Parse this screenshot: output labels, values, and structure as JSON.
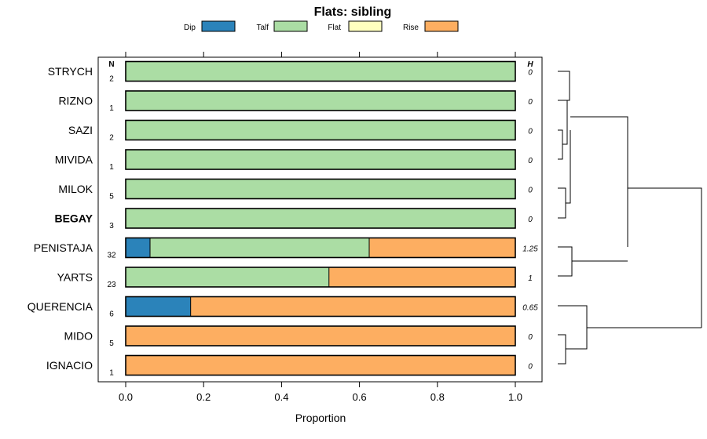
{
  "chart_data": {
    "type": "bar",
    "orientation": "horizontal",
    "stacked": true,
    "title": "Flats: sibling",
    "xlabel": "Proportion",
    "ylabel": "",
    "xlim": [
      0,
      1
    ],
    "xticks": [
      "0.0",
      "0.2",
      "0.4",
      "0.6",
      "0.8",
      "1.0"
    ],
    "n_header": "N",
    "h_header": "H",
    "legend": [
      {
        "name": "Dip",
        "color": "#2b83ba"
      },
      {
        "name": "Talf",
        "color": "#abdda4"
      },
      {
        "name": "Flat",
        "color": "#ffffbf"
      },
      {
        "name": "Rise",
        "color": "#fdae61"
      }
    ],
    "categories": [
      "STRYCH",
      "RIZNO",
      "SAZI",
      "MIVIDA",
      "MILOK",
      "BEGAY",
      "PENISTAJA",
      "YARTS",
      "QUERENCIA",
      "MIDO",
      "IGNACIO"
    ],
    "bold_categories": [
      "BEGAY"
    ],
    "n": [
      "2",
      "1",
      "2",
      "1",
      "5",
      "3",
      "32",
      "23",
      "6",
      "5",
      "1"
    ],
    "h": [
      "0",
      "0",
      "0",
      "0",
      "0",
      "0",
      "1.25",
      "1",
      "0.65",
      "0",
      "0"
    ],
    "series": [
      {
        "name": "Dip",
        "values": [
          0,
          0,
          0,
          0,
          0,
          0,
          0.0625,
          0,
          0.1667,
          0,
          0
        ]
      },
      {
        "name": "Talf",
        "values": [
          1,
          1,
          1,
          1,
          1,
          1,
          0.5625,
          0.5217,
          0,
          0,
          0
        ]
      },
      {
        "name": "Flat",
        "values": [
          0,
          0,
          0,
          0,
          0,
          0,
          0,
          0,
          0,
          0,
          0
        ]
      },
      {
        "name": "Rise",
        "values": [
          0,
          0,
          0,
          0,
          0,
          0,
          0.375,
          0.4783,
          0.8333,
          1,
          1
        ]
      }
    ]
  }
}
